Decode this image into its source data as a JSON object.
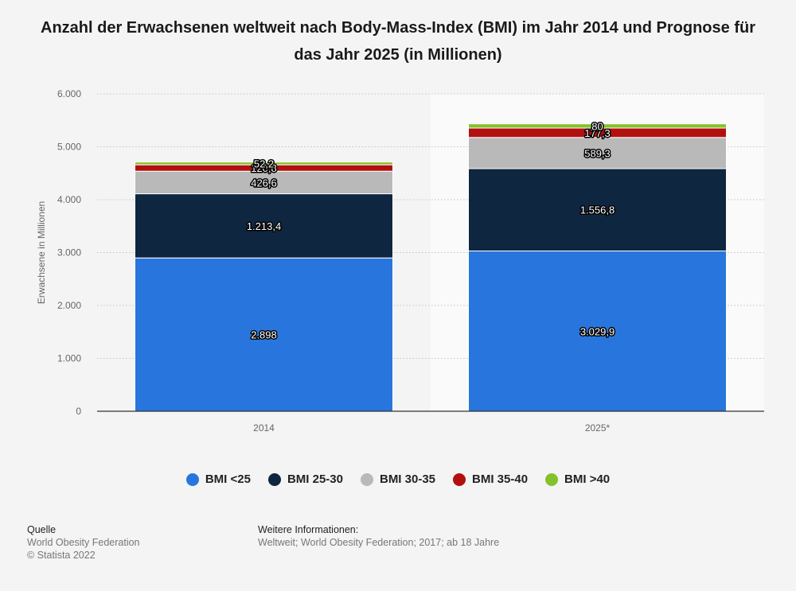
{
  "chart_data": {
    "type": "bar",
    "stacked": true,
    "title": "Anzahl der Erwachsenen weltweit nach Body-Mass-Index (BMI) im Jahr 2014 und Prognose für das Jahr 2025 (in Millionen)",
    "xlabel": "",
    "ylabel": "Erwachsene in Millionen",
    "ylim": [
      0,
      6000
    ],
    "yticks": [
      0,
      1000,
      2000,
      3000,
      4000,
      5000,
      6000
    ],
    "ytick_labels": [
      "0",
      "1.000",
      "2.000",
      "3.000",
      "4.000",
      "5.000",
      "6.000"
    ],
    "categories": [
      "2014",
      "2025*"
    ],
    "series": [
      {
        "name": "BMI <25",
        "color": "#2876dd",
        "values": [
          2898,
          3029.9
        ],
        "labels": [
          "2.898",
          "3.029,9"
        ]
      },
      {
        "name": "BMI 25-30",
        "color": "#0f2640",
        "values": [
          1213.4,
          1556.8
        ],
        "labels": [
          "1.213,4",
          "1.556,8"
        ]
      },
      {
        "name": "BMI 30-35",
        "color": "#b9b9b9",
        "values": [
          426.6,
          589.3
        ],
        "labels": [
          "426,6",
          "589,3"
        ]
      },
      {
        "name": "BMI 35-40",
        "color": "#b20f0f",
        "values": [
          120.8,
          177.3
        ],
        "labels": [
          "120,8",
          "177,3"
        ]
      },
      {
        "name": "BMI >40",
        "color": "#86c12b",
        "values": [
          52.2,
          80
        ],
        "labels": [
          "52,2",
          "80"
        ]
      }
    ],
    "grid": true,
    "legend": "bottom"
  },
  "source": {
    "label": "Quelle",
    "lines": [
      "World Obesity Federation",
      "© Statista 2022"
    ]
  },
  "info": {
    "label": "Weitere Informationen:",
    "text": "Weltweit; World Obesity Federation; 2017; ab 18 Jahre"
  }
}
